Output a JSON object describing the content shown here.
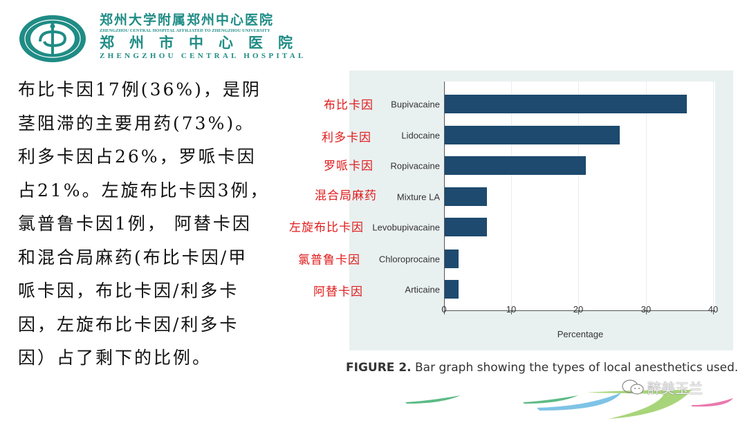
{
  "header": {
    "logo_icon": "hospital-logo-icon",
    "title_cn_1": "郑州大学附属郑州中心医院",
    "title_en_1": "ZHENGZHOU CENTRAL HOSPITAL AFFILIATED TO ZHENGZHOU UNIVERSITY",
    "title_cn_2": "郑州市中心医院",
    "title_en_2": "ZHENGZHOU CENTRAL HOSPITAL",
    "brand_color": "#1f8c85"
  },
  "body": {
    "lines": [
      "布比卡因17例(36%)，是阴",
      "茎阻滞的主要用药(73%)。",
      "利多卡因占26%，罗哌卡因",
      "占21%。左旋布比卡因3例，",
      "氯普鲁卡因1例， 阿替卡因",
      "和混合局麻药(布比卡因/甲",
      "哌卡因，布比卡因/利多卡",
      "因，左旋布比卡因/利多卡",
      "因）占了剩下的比例。"
    ]
  },
  "figure": {
    "cn_labels": [
      "布比卡因",
      "利多卡因",
      "罗哌卡因",
      "混合局麻药",
      "左旋布比卡因",
      "氯普鲁卡因",
      "阿替卡因"
    ],
    "annotation_color": "#e01b1b",
    "bar_color": "#1d4a6e",
    "caption_bold": "FIGURE 2.",
    "caption_text": " Bar graph showing the types of local anesthetics used."
  },
  "chart_data": {
    "type": "bar",
    "orientation": "horizontal",
    "title": "",
    "categories": [
      "Bupivacaine",
      "Lidocaine",
      "Ropivacaine",
      "Mixture LA",
      "Levobupivacaine",
      "Chloroprocaine",
      "Articaine"
    ],
    "values": [
      36,
      26,
      21,
      6.3,
      6.3,
      2.1,
      2.1
    ],
    "xlabel": "Percentage",
    "ylabel": "",
    "xlim": [
      0,
      40
    ],
    "xticks": [
      "0",
      "10",
      "20",
      "30",
      "40"
    ],
    "grid": true,
    "legend": null
  },
  "watermark": {
    "icon": "wechat-icon",
    "text": "醉美玉兰"
  }
}
